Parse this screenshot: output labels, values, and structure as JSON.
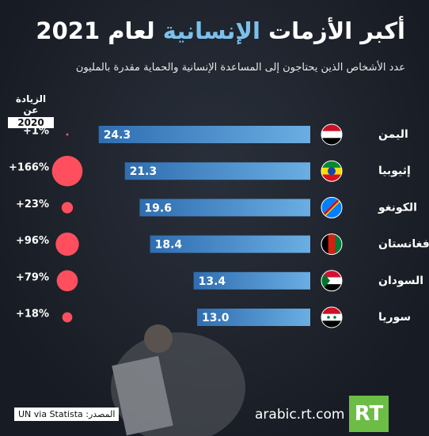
{
  "chart_data": {
    "type": "bar",
    "orientation": "horizontal",
    "title_parts": [
      "أكبر الأزمات",
      "الإنسانية",
      "لعام 2021"
    ],
    "subtitle": "عدد الأشخاص الذين يحتاجون إلى المساعدة الإنسانية والحماية مقدرة بالمليون",
    "categories": [
      "اليمن",
      "إثيوبيا",
      "الكونغو",
      "أفغانستان",
      "السودان",
      "سوريا"
    ],
    "values": [
      24.3,
      21.3,
      19.6,
      18.4,
      13.4,
      13.0
    ],
    "value_labels": [
      "24.3",
      "21.3",
      "19.6",
      "18.4",
      "13.4",
      "13.0"
    ],
    "color": "#4d93d0",
    "xlim": [
      0,
      25
    ],
    "change": {
      "header": "الزيادة عن",
      "header_year": "2020",
      "values": [
        1,
        166,
        23,
        96,
        79,
        18
      ],
      "value_labels": [
        "+1%",
        "+166%",
        "+23%",
        "+96%",
        "+79%",
        "+18%"
      ],
      "color": "#ff4f5e"
    },
    "source": "المصدر: UN via Statista",
    "site": "arabic.rt.com",
    "logo": "RT"
  }
}
